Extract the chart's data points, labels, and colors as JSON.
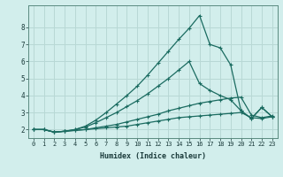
{
  "xlabel": "Humidex (Indice chaleur)",
  "ylabel": "",
  "background_color": "#d2eeec",
  "grid_color": "#b8d8d5",
  "line_color": "#1a6b60",
  "xlim": [
    -0.5,
    23.5
  ],
  "ylim": [
    1.5,
    9.3
  ],
  "xticks": [
    0,
    1,
    2,
    3,
    4,
    5,
    6,
    7,
    8,
    9,
    10,
    11,
    12,
    13,
    14,
    15,
    16,
    17,
    18,
    19,
    20,
    21,
    22,
    23
  ],
  "yticks": [
    2,
    3,
    4,
    5,
    6,
    7,
    8
  ],
  "series": [
    {
      "x": [
        0,
        1,
        2,
        3,
        4,
        5,
        6,
        7,
        8,
        9,
        10,
        11,
        12,
        13,
        14,
        15,
        16,
        17,
        18,
        19,
        20,
        21,
        22,
        23
      ],
      "y": [
        2.0,
        2.0,
        1.85,
        1.9,
        1.95,
        2.0,
        2.05,
        2.1,
        2.15,
        2.2,
        2.3,
        2.4,
        2.5,
        2.6,
        2.7,
        2.75,
        2.8,
        2.85,
        2.9,
        2.95,
        3.0,
        2.7,
        2.65,
        2.75
      ],
      "style": "-",
      "marker": "+",
      "markersize": 3,
      "linewidth": 0.9
    },
    {
      "x": [
        0,
        1,
        2,
        3,
        4,
        5,
        6,
        7,
        8,
        9,
        10,
        11,
        12,
        13,
        14,
        15,
        16,
        17,
        18,
        19,
        20,
        21,
        22,
        23
      ],
      "y": [
        2.0,
        2.0,
        1.85,
        1.9,
        1.95,
        2.0,
        2.1,
        2.2,
        2.3,
        2.45,
        2.6,
        2.75,
        2.9,
        3.1,
        3.25,
        3.4,
        3.55,
        3.65,
        3.75,
        3.85,
        3.9,
        2.85,
        2.7,
        2.8
      ],
      "style": "-",
      "marker": "+",
      "markersize": 3,
      "linewidth": 0.9
    },
    {
      "x": [
        0,
        1,
        2,
        3,
        4,
        5,
        6,
        7,
        8,
        9,
        10,
        11,
        12,
        13,
        14,
        15,
        16,
        17,
        18,
        19,
        20,
        21,
        22,
        23
      ],
      "y": [
        2.0,
        2.0,
        1.85,
        1.9,
        2.0,
        2.15,
        2.4,
        2.7,
        3.0,
        3.35,
        3.7,
        4.1,
        4.55,
        5.0,
        5.5,
        6.0,
        4.7,
        4.3,
        4.0,
        3.75,
        3.1,
        2.65,
        3.3,
        2.75
      ],
      "style": "-",
      "marker": "+",
      "markersize": 3,
      "linewidth": 0.9
    },
    {
      "x": [
        0,
        1,
        2,
        3,
        4,
        5,
        6,
        7,
        8,
        9,
        10,
        11,
        12,
        13,
        14,
        15,
        16,
        17,
        18,
        19,
        20,
        21,
        22,
        23
      ],
      "y": [
        2.0,
        2.0,
        1.85,
        1.9,
        2.0,
        2.2,
        2.55,
        3.0,
        3.5,
        4.0,
        4.55,
        5.2,
        5.9,
        6.6,
        7.3,
        7.95,
        8.7,
        7.0,
        6.8,
        5.8,
        3.1,
        2.65,
        3.3,
        2.75
      ],
      "style": "-",
      "marker": "+",
      "markersize": 3,
      "linewidth": 0.9
    }
  ]
}
